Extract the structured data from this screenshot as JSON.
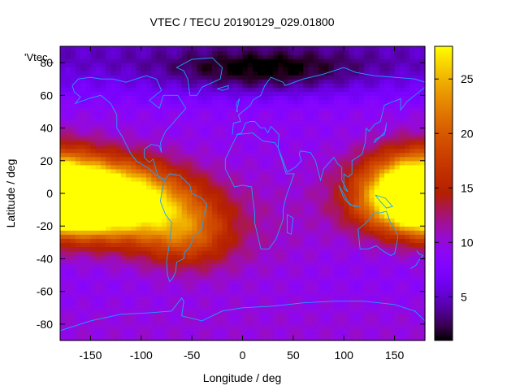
{
  "chart_data": {
    "type": "heatmap",
    "title": "VTEC / TECU 20190129_029.01800",
    "xlabel": "Longitude / deg",
    "ylabel": "Latitude / deg",
    "legend_key": "'Vtec_",
    "xlim": [
      -180,
      180
    ],
    "ylim": [
      -90,
      90
    ],
    "x_ticks": [
      -150,
      -100,
      -50,
      0,
      50,
      100,
      150
    ],
    "y_ticks": [
      -80,
      -60,
      -40,
      -20,
      0,
      20,
      40,
      60,
      80
    ],
    "x_tick_labels": [
      "-150",
      "-100",
      "-50",
      "0",
      "50",
      "100",
      "150"
    ],
    "y_tick_labels": [
      "-80",
      "-60",
      "-40",
      "-20",
      "0",
      "20",
      "40",
      "60",
      "80"
    ],
    "colorbar": {
      "range": [
        1,
        28
      ],
      "ticks": [
        5,
        10,
        15,
        20,
        25
      ],
      "tick_labels": [
        "5",
        "10",
        "15",
        "20",
        "25"
      ],
      "palette": "gnuplot-pm3d"
    },
    "grid": false,
    "colors": {
      "coastline": "#1ea0ff"
    },
    "features": [
      {
        "lon": -175,
        "lat": -8,
        "vtec": 27,
        "spread_lon": 40,
        "spread_lat": 12
      },
      {
        "lon": -140,
        "lat": 0,
        "vtec": 23,
        "spread_lon": 45,
        "spread_lat": 16
      },
      {
        "lon": -100,
        "lat": -8,
        "vtec": 20,
        "spread_lon": 45,
        "spread_lat": 16
      },
      {
        "lon": -55,
        "lat": -25,
        "vtec": 17,
        "spread_lon": 30,
        "spread_lat": 14
      },
      {
        "lon": 155,
        "lat": 3,
        "vtec": 19,
        "spread_lon": 40,
        "spread_lat": 16
      },
      {
        "lon": 175,
        "lat": 10,
        "vtec": 17,
        "spread_lon": 30,
        "spread_lat": 14
      },
      {
        "lon": 0,
        "lat": -20,
        "vtec": 11,
        "spread_lon": 60,
        "spread_lat": 25
      },
      {
        "lon": 20,
        "lat": 75,
        "vtec": 4,
        "spread_lon": 70,
        "spread_lat": 10
      }
    ],
    "background_vtec": 9,
    "north_polar_vtec": 5,
    "south_polar_vtec": 10
  }
}
